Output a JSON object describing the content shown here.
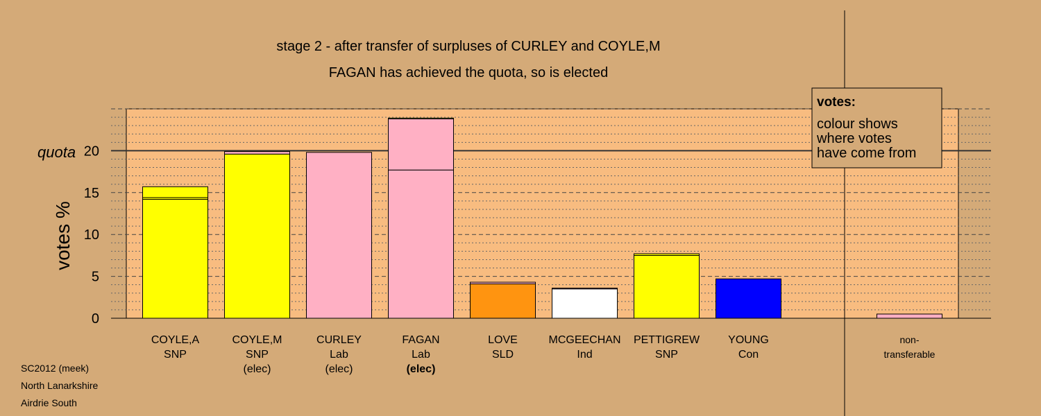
{
  "title_line1": "stage 2 - after transfer of surpluses of CURLEY and COYLE,M",
  "title_line2": "FAGAN has achieved the quota, so is elected",
  "footer": [
    "SC2012 (meek)",
    "North Lanarkshire",
    "Airdrie South"
  ],
  "legend": {
    "heading": "votes:",
    "lines": [
      "colour shows",
      "where votes",
      "have come from"
    ]
  },
  "colors": {
    "background": "#D4AA78",
    "plot_background": "#F8BC80",
    "SNP": "#FFFF00",
    "Lab": "#FFB0C4",
    "SLD": "#FF9410",
    "Ind": "#FFFFFF",
    "Con": "#0000FF"
  },
  "chart_data": {
    "type": "bar",
    "stacked": true,
    "ylabel": "votes %",
    "quota_label": "quota",
    "quota": 20,
    "ylim": [
      0,
      25
    ],
    "yticks": [
      0,
      5,
      10,
      15,
      20
    ],
    "grid": true,
    "legend_position": "top-right",
    "candidates": [
      {
        "name": "COYLE,A",
        "party": "SNP",
        "status": "",
        "segments": [
          {
            "color": "#FFFF00",
            "value": 14.2
          },
          {
            "color": "#FFFF00",
            "value": 0.2
          },
          {
            "color": "#FFFF00",
            "value": 1.3
          }
        ]
      },
      {
        "name": "COYLE,M",
        "party": "SNP",
        "status": "(elec)",
        "segments": [
          {
            "color": "#FFFF00",
            "value": 19.6
          },
          {
            "color": "#FFB0C4",
            "value": 0.3
          }
        ]
      },
      {
        "name": "CURLEY",
        "party": "Lab",
        "status": "(elec)",
        "segments": [
          {
            "color": "#FFB0C4",
            "value": 19.8
          }
        ]
      },
      {
        "name": "FAGAN",
        "party": "Lab",
        "status": "(elec)",
        "segments": [
          {
            "color": "#FFB0C4",
            "value": 17.7
          },
          {
            "color": "#FFB0C4",
            "value": 6.1
          },
          {
            "color": "#FFFF00",
            "value": 0.1
          }
        ]
      },
      {
        "name": "LOVE",
        "party": "SLD",
        "status": "",
        "segments": [
          {
            "color": "#FF9410",
            "value": 4.1
          },
          {
            "color": "#FFB0C4",
            "value": 0.2
          }
        ]
      },
      {
        "name": "MCGEECHAN",
        "party": "Ind",
        "status": "",
        "segments": [
          {
            "color": "#FFFFFF",
            "value": 3.5
          },
          {
            "color": "#FFB0C4",
            "value": 0.1
          }
        ]
      },
      {
        "name": "PETTIGREW",
        "party": "SNP",
        "status": "",
        "segments": [
          {
            "color": "#FFFF00",
            "value": 7.5
          },
          {
            "color": "#FFFF00",
            "value": 0.2
          }
        ]
      },
      {
        "name": "YOUNG",
        "party": "Con",
        "status": "",
        "segments": [
          {
            "color": "#0000FF",
            "value": 4.7
          }
        ]
      }
    ],
    "nontransferable": {
      "label_line1": "non-",
      "label_line2": "transferable",
      "segments": [
        {
          "color": "#FFB0C4",
          "value": 0.5
        }
      ]
    }
  }
}
